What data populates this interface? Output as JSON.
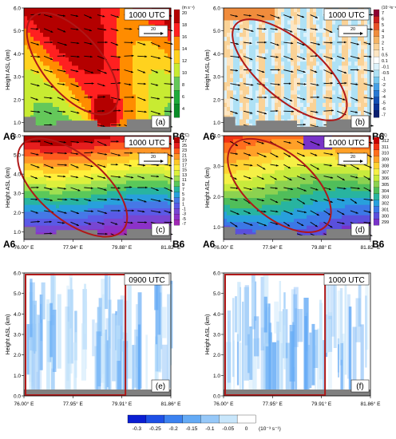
{
  "figure": {
    "panels": [
      {
        "label": "(a)",
        "time": "1000 UTC",
        "unit": "(m s⁻¹)",
        "ylabel": "Height ASL (km)",
        "y_ticks": [
          "1.0",
          "2.0",
          "3.0",
          "4.0",
          "5.0",
          "6.0"
        ],
        "left_mark": "A6",
        "right_mark": "B6",
        "ref_vector": "20",
        "colorbar_ticks": [
          "20",
          "18",
          "16",
          "14",
          "12",
          "10",
          "8",
          "6",
          "4"
        ],
        "colorbar_colors": [
          "#b40000",
          "#ff2020",
          "#ff8c00",
          "#ffd21e",
          "#c8eb32",
          "#64c85a",
          "#1eaa3c",
          "#0a8c28"
        ]
      },
      {
        "label": "(b)",
        "time": "1000 UTC",
        "unit": "(10⁻²s⁻¹)",
        "ylabel": "Height ASL (km)",
        "y_ticks": [
          "1.0",
          "2.0",
          "3.0",
          "4.0",
          "5.0",
          "6.0"
        ],
        "left_mark": "A6",
        "right_mark": "B6",
        "ref_vector": "20",
        "colorbar_ticks": [
          "7",
          "6",
          "5",
          "4",
          "3",
          "2",
          "1",
          "0.5",
          "0.1",
          "-0.1",
          "-0.5",
          "-1",
          "-2",
          "-3",
          "-4",
          "-5",
          "-6",
          "-7"
        ],
        "colorbar_colors": [
          "#8c0032",
          "#c81e1e",
          "#e65028",
          "#f08c3c",
          "#f5b464",
          "#fad296",
          "#fde6c3",
          "#ffffff",
          "#ddf2fb",
          "#aee1f5",
          "#78c8ee",
          "#46a0e6",
          "#2878d2",
          "#1450b4",
          "#0a3296",
          "#0a1e6e"
        ]
      },
      {
        "label": "(c)",
        "time": "1000 UTC",
        "unit": "(°C)",
        "ylabel": "Height ASL (km)",
        "y_ticks": [
          "1.0",
          "2.0",
          "3.0",
          "4.0",
          "5.0",
          "6.0"
        ],
        "left_mark": "A6",
        "right_mark": "B6",
        "ref_vector": "20",
        "x_ticks": [
          "76.00° E",
          "77.94° E",
          "79.88° E",
          "81.82° E"
        ],
        "colorbar_ticks": [
          "27",
          "25",
          "23",
          "21",
          "19",
          "17",
          "15",
          "13",
          "11",
          "9",
          "7",
          "5",
          "3",
          "1",
          "-1",
          "-3",
          "-5",
          "-7"
        ],
        "colorbar_colors": [
          "#b40000",
          "#e61e1e",
          "#ff5a1e",
          "#ff9628",
          "#ffc828",
          "#fff03c",
          "#dcf03c",
          "#a0e050",
          "#5ac85a",
          "#28b4a0",
          "#28a0dc",
          "#4678e6",
          "#5a5ae6",
          "#7846d2",
          "#8c32c8",
          "#a028b4"
        ]
      },
      {
        "label": "(d)",
        "time": "1000 UTC",
        "unit": "(K)",
        "ylabel": "Height ASL (km)",
        "y_ticks": [
          "1.0",
          "2.0",
          "3.0",
          "4.0"
        ],
        "left_mark": "A6",
        "right_mark": "B6",
        "ref_vector": "20",
        "x_ticks": [
          "76.00° E",
          "77.94° E",
          "79.88° E",
          "81.82° E"
        ],
        "colorbar_ticks": [
          "312",
          "311",
          "310",
          "309",
          "308",
          "307",
          "306",
          "305",
          "304",
          "303",
          "302",
          "301",
          "300",
          "299"
        ],
        "colorbar_colors": [
          "#c80000",
          "#f03214",
          "#ff6e1e",
          "#ffa028",
          "#ffd232",
          "#f5f046",
          "#c8eb3c",
          "#8cd250",
          "#50be5a",
          "#28b4a0",
          "#28a0dc",
          "#3c78e6",
          "#5a50dc",
          "#7832c8"
        ]
      },
      {
        "label": "(e)",
        "time": "0900 UTC",
        "ylabel": "Height ASL (km)",
        "y_ticks": [
          "0.0",
          "1.0",
          "2.0",
          "3.0",
          "4.0",
          "5.0",
          "6.0"
        ],
        "x_ticks": [
          "76.00° E",
          "77.95° E",
          "79.91° E",
          "81.86° E"
        ]
      },
      {
        "label": "(f)",
        "time": "1000 UTC",
        "ylabel": "Height ASL (km)",
        "y_ticks": [
          "0.0",
          "1.0",
          "2.0",
          "3.0",
          "4.0",
          "5.0",
          "6.0"
        ],
        "x_ticks": [
          "76.00° E",
          "77.95° E",
          "79.91° E",
          "81.86° E"
        ]
      }
    ],
    "bottom_colorbar": {
      "ticks": [
        "-0.3",
        "-0.25",
        "-0.2",
        "-0.15",
        "-0.1",
        "-0.05",
        "0"
      ],
      "unit": "(10⁻³ s⁻¹)",
      "colors": [
        "#0a1ed2",
        "#1e50e6",
        "#3c82f0",
        "#64aaf5",
        "#96c8f8",
        "#c8e6fb",
        "#ffffff"
      ]
    }
  },
  "chart_data": [
    {
      "type": "heatmap",
      "title": "1000 UTC",
      "panel": "(a)",
      "variable": "wind speed",
      "unit": "m s⁻¹",
      "ylim": [
        0.6,
        6.0
      ],
      "range_values": [
        4,
        20
      ]
    },
    {
      "type": "heatmap",
      "title": "1000 UTC",
      "panel": "(b)",
      "variable": "vorticity",
      "unit": "10⁻² s⁻¹",
      "ylim": [
        0.6,
        6.0
      ],
      "range_values": [
        -7,
        7
      ]
    },
    {
      "type": "heatmap",
      "title": "1000 UTC",
      "panel": "(c)",
      "variable": "temperature",
      "unit": "°C",
      "ylim": [
        0.6,
        6.0
      ],
      "x": [
        "76.00° E",
        "77.94° E",
        "79.88° E",
        "81.82° E"
      ],
      "range_values": [
        -7,
        27
      ]
    },
    {
      "type": "heatmap",
      "title": "1000 UTC",
      "panel": "(d)",
      "variable": "potential temperature",
      "unit": "K",
      "ylim": [
        0.6,
        4.0
      ],
      "x": [
        "76.00° E",
        "77.94° E",
        "79.88° E",
        "81.82° E"
      ],
      "range_values": [
        299,
        312
      ]
    },
    {
      "type": "heatmap",
      "title": "0900 UTC",
      "panel": "(e)",
      "unit": "10⁻³ s⁻¹",
      "ylim": [
        0.0,
        6.0
      ],
      "x": [
        "76.00° E",
        "77.95° E",
        "79.91° E",
        "81.86° E"
      ],
      "range_values": [
        -0.3,
        0
      ]
    },
    {
      "type": "heatmap",
      "title": "1000 UTC",
      "panel": "(f)",
      "unit": "10⁻³ s⁻¹",
      "ylim": [
        0.0,
        6.0
      ],
      "x": [
        "76.00° E",
        "77.95° E",
        "79.91° E",
        "81.86° E"
      ],
      "range_values": [
        -0.3,
        0
      ]
    }
  ]
}
